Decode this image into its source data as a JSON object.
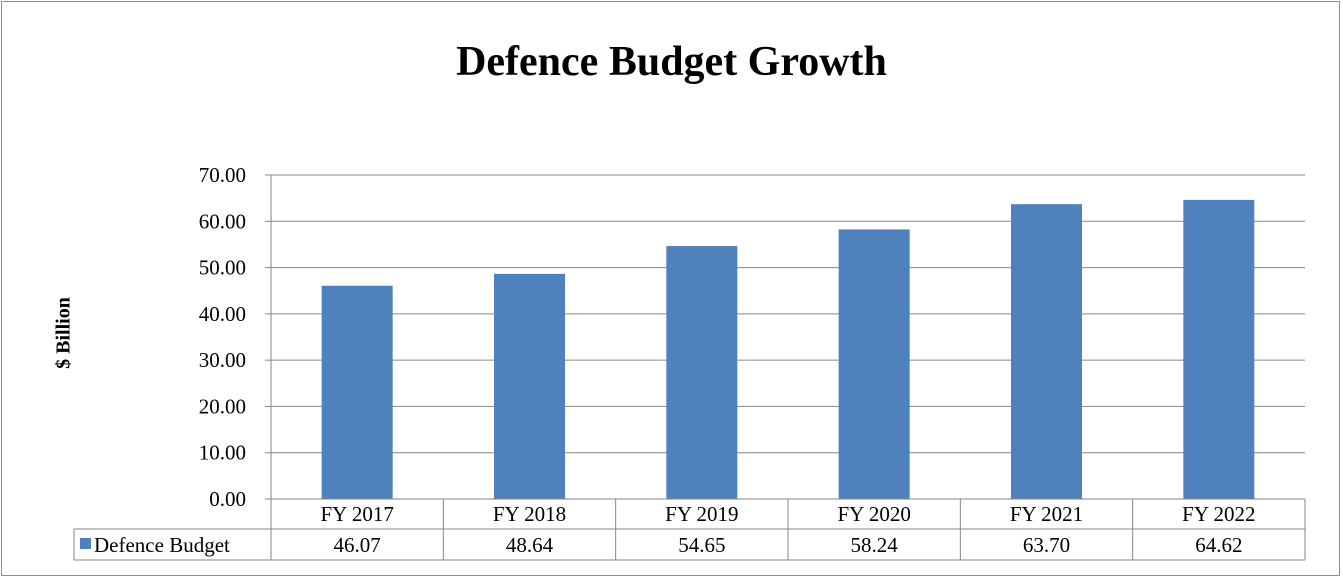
{
  "chart_data": {
    "type": "bar",
    "title": "Defence Budget Growth",
    "xlabel": "",
    "ylabel": "$ Billion",
    "categories": [
      "FY 2017",
      "FY 2018",
      "FY 2019",
      "FY 2020",
      "FY 2021",
      "FY 2022"
    ],
    "series": [
      {
        "name": "Defence Budget",
        "values": [
          46.07,
          48.64,
          54.65,
          58.24,
          63.7,
          64.62
        ],
        "value_labels": [
          "46.07",
          "48.64",
          "54.65",
          "58.24",
          "63.70",
          "64.62"
        ],
        "color": "#4f81bd"
      }
    ],
    "ylim": [
      0,
      70
    ],
    "y_ticks": [
      "0.00",
      "10.00",
      "20.00",
      "30.00",
      "40.00",
      "50.00",
      "60.00",
      "70.00"
    ],
    "grid": true,
    "legend": "data-table-left",
    "colors": {
      "bar": "#4f81bd",
      "grid": "#868686",
      "frame": "#8c8c8c"
    }
  }
}
